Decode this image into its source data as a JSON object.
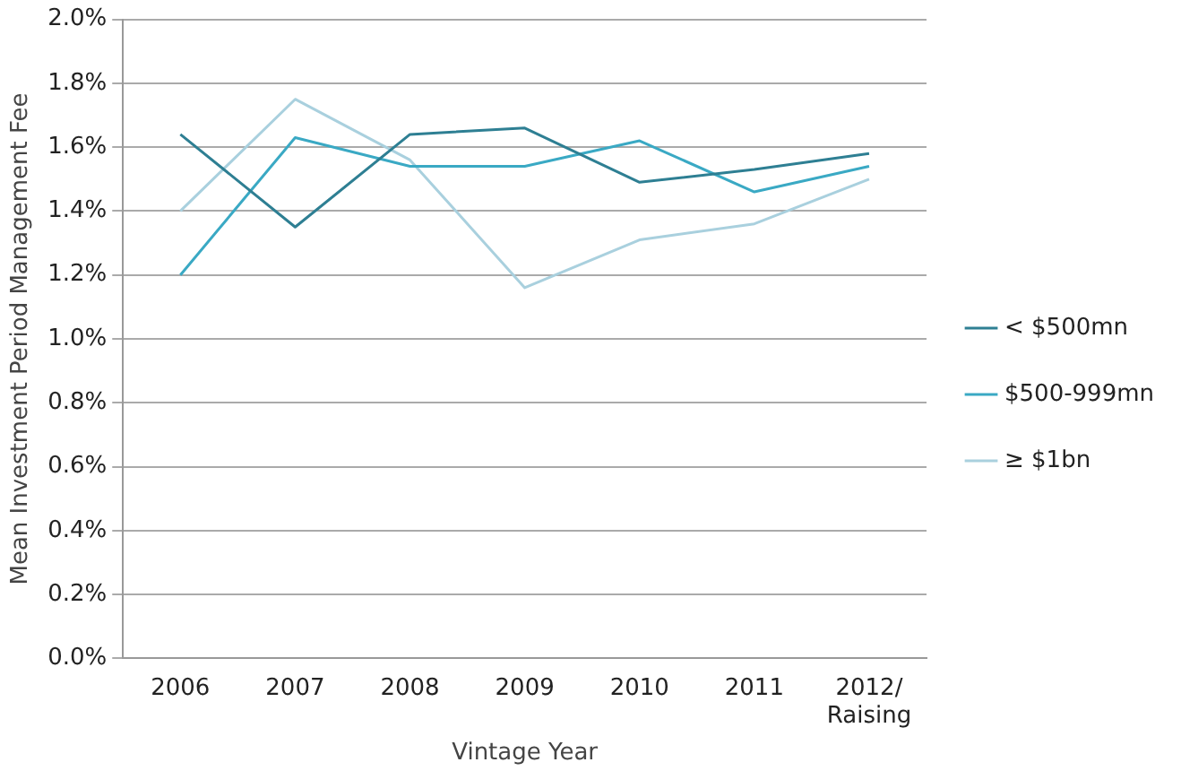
{
  "chart_data": {
    "type": "line",
    "xlabel": "Vintage Year",
    "ylabel": "Mean Investment Period Management Fee",
    "categories": [
      "2006",
      "2007",
      "2008",
      "2009",
      "2010",
      "2011",
      "2012/\nRaising"
    ],
    "series": [
      {
        "name": "< $500mn",
        "color": "#2e7f93",
        "values": [
          1.64,
          1.35,
          1.64,
          1.66,
          1.49,
          1.53,
          1.58
        ]
      },
      {
        "name": "$500-999mn",
        "color": "#3aa9c4",
        "values": [
          1.2,
          1.63,
          1.54,
          1.54,
          1.62,
          1.46,
          1.54
        ]
      },
      {
        "name": "≥ $1bn",
        "color": "#a9d0de",
        "values": [
          1.4,
          1.75,
          1.56,
          1.16,
          1.31,
          1.36,
          1.5
        ]
      }
    ],
    "ylim": [
      0,
      2
    ],
    "yticks": [
      {
        "value": 0,
        "label": "0.0%"
      },
      {
        "value": 0.2,
        "label": "0.2%"
      },
      {
        "value": 0.4,
        "label": "0.4%"
      },
      {
        "value": 0.6,
        "label": "0.6%"
      },
      {
        "value": 0.8,
        "label": "0.8%"
      },
      {
        "value": 1.0,
        "label": "1.0%"
      },
      {
        "value": 1.2,
        "label": "1.2%"
      },
      {
        "value": 1.4,
        "label": "1.4%"
      },
      {
        "value": 1.6,
        "label": "1.6%"
      },
      {
        "value": 1.8,
        "label": "1.8%"
      },
      {
        "value": 2.0,
        "label": "2.0%"
      }
    ],
    "grid": "y",
    "legend": "right",
    "marker": "none",
    "line_style": "solid"
  }
}
